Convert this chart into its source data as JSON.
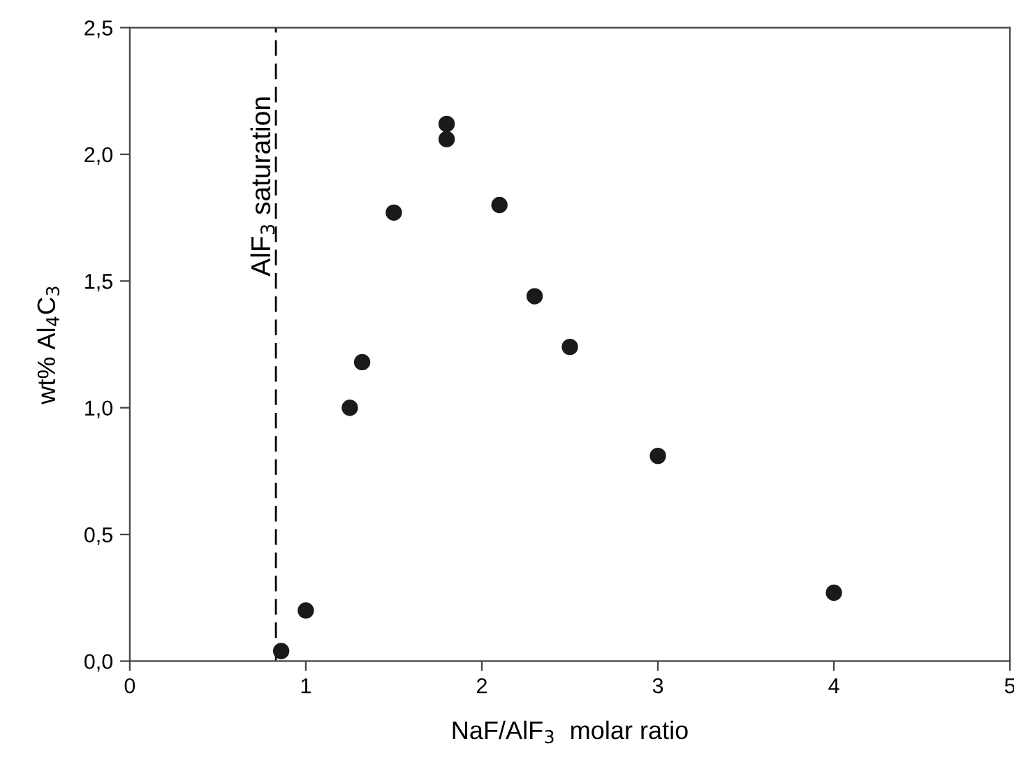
{
  "chart_data": {
    "type": "scatter",
    "xlabel": "NaF/AlF$_{3}$  molar ratio",
    "ylabel": "wt% Al$_{4}$C$_{3}$",
    "x": [
      0.86,
      1.0,
      1.25,
      1.32,
      1.5,
      1.8,
      1.8,
      2.1,
      2.3,
      2.5,
      3.0,
      4.0
    ],
    "values": [
      0.04,
      0.2,
      1.0,
      1.18,
      1.77,
      2.12,
      2.06,
      1.8,
      1.44,
      1.24,
      0.81,
      0.27
    ],
    "color": "#1a1a1a",
    "marker": "circle",
    "xlim": [
      0,
      5
    ],
    "xticks": [
      0,
      1,
      2,
      3,
      4,
      5
    ],
    "ylim": [
      0,
      2.5
    ],
    "yticks": [
      {
        "value": 0,
        "label": "0,0"
      },
      {
        "value": 0.5,
        "label": "0,5"
      },
      {
        "value": 1.0,
        "label": "1,0"
      },
      {
        "value": 1.5,
        "label": "1,5"
      },
      {
        "value": 2.0,
        "label": "2,0"
      },
      {
        "value": 2.5,
        "label": "2,5"
      }
    ],
    "ref_lines": [
      {
        "axis": "x",
        "value": 0.83,
        "label": "AlF$_{3}$ saturation",
        "color": "#000000",
        "line_style": "dashed"
      }
    ],
    "grid": false,
    "legend": false
  }
}
